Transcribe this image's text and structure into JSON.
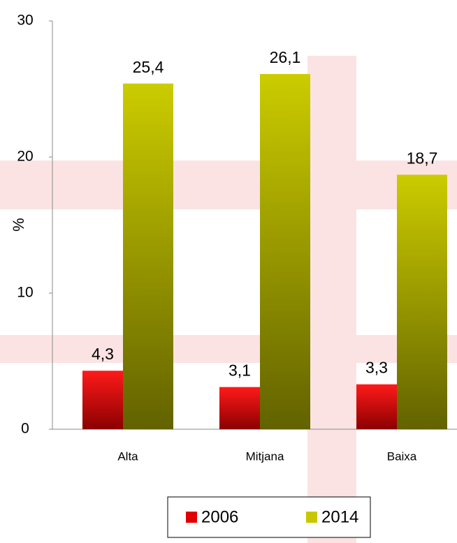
{
  "chart_data": {
    "type": "bar",
    "categories": [
      "Alta",
      "Mitjana",
      "Baixa"
    ],
    "series": [
      {
        "name": "2006",
        "color": "#e00000",
        "values": [
          4.3,
          3.1,
          3.3
        ],
        "value_labels": [
          "4,3",
          "3,1",
          "3,3"
        ]
      },
      {
        "name": "2014",
        "color": "#c8c800",
        "values": [
          25.4,
          26.1,
          18.7
        ],
        "value_labels": [
          "25,4",
          "26,1",
          "18,7"
        ]
      }
    ],
    "ylabel": "%",
    "ylim": [
      0,
      30
    ],
    "yticks": [
      0,
      10,
      20,
      30
    ],
    "legend": "bottom"
  }
}
